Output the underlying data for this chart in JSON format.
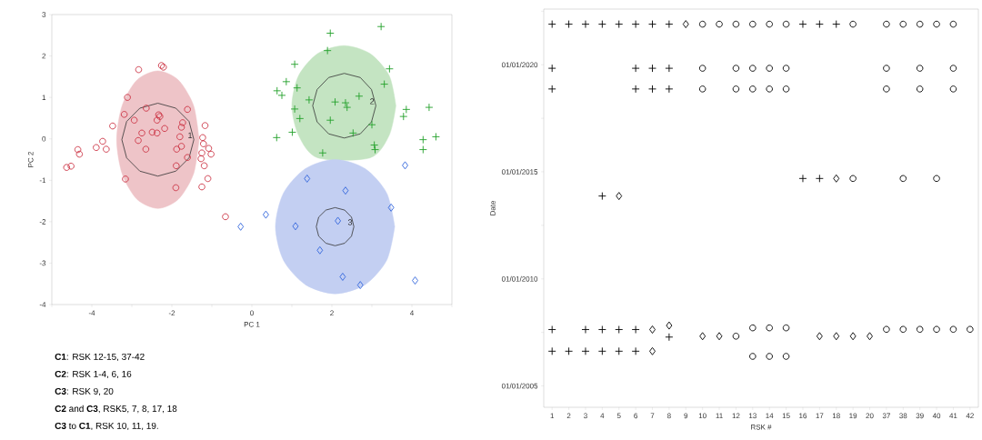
{
  "chart_data": [
    {
      "type": "scatter",
      "xlabel": "PC 1",
      "ylabel": "PC 2",
      "xlim": [
        -5,
        5
      ],
      "ylim": [
        -4,
        3
      ],
      "xticks": [
        {
          "value": -5,
          "label": null
        },
        -4,
        {
          "value": -3,
          "label": null
        },
        -2,
        {
          "value": -1,
          "label": null
        },
        0,
        {
          "value": 1,
          "label": null
        },
        2,
        {
          "value": 3,
          "label": null
        },
        4,
        {
          "value": 5,
          "label": null
        }
      ],
      "yticks": [
        -4,
        -3,
        -2,
        -1,
        0,
        1,
        2,
        3
      ],
      "series": [
        {
          "type": "area",
          "color": "#eec4c8",
          "marker": "none",
          "x": [
            -1.32,
            -1.46,
            -1.84,
            -2.35,
            -2.87,
            -3.24,
            -3.38,
            -3.24,
            -2.87,
            -2.35,
            -1.84,
            -1.46,
            -1.32
          ],
          "values": [
            -0.02,
            0.81,
            1.42,
            1.64,
            1.42,
            0.81,
            -0.02,
            -0.85,
            -1.46,
            -1.68,
            -1.46,
            -0.85,
            -0.02
          ]
        },
        {
          "type": "area",
          "color": "#c4e4c2",
          "marker": "none",
          "x": [
            3.6,
            3.43,
            2.95,
            2.3,
            1.65,
            1.17,
            1.0,
            1.17,
            1.65,
            2.3,
            2.95,
            3.43,
            3.6
          ],
          "values": [
            0.8,
            1.53,
            2.06,
            2.25,
            2.06,
            1.53,
            0.8,
            0.08,
            -0.46,
            null,
            -0.46,
            0.08,
            0.8
          ]
        },
        {
          "type": "area",
          "color": "#c3cff2",
          "marker": "none",
          "x": [
            3.57,
            3.37,
            2.83,
            2.08,
            1.34,
            0.79,
            0.59,
            0.79,
            1.34,
            2.08,
            2.83,
            3.37,
            3.57
          ],
          "values": [
            -2.12,
            -1.31,
            -0.72,
            -0.5,
            -0.72,
            -1.31,
            -2.12,
            -2.93,
            -3.52,
            -3.74,
            -3.52,
            -2.93,
            -2.12
          ]
        },
        {
          "type": "line",
          "color": "#333333",
          "marker": "none",
          "x": [
            -3.25,
            -3.13,
            -2.8,
            -2.35,
            -1.9,
            -1.57,
            -1.45
          ],
          "values": [
            -0.02,
            0.42,
            0.74,
            0.86,
            0.74,
            0.42,
            -0.02
          ]
        },
        {
          "type": "line",
          "color": "#333333",
          "marker": "none",
          "x": [
            -3.25,
            -3.13,
            -2.8,
            -2.35,
            -1.9,
            -1.57,
            -1.45
          ],
          "values": [
            -0.02,
            -0.46,
            -0.78,
            -0.9,
            -0.78,
            -0.46,
            -0.02
          ]
        },
        {
          "type": "line",
          "color": "#333333",
          "marker": "none",
          "x": [
            1.52,
            1.63,
            1.92,
            2.31,
            2.71,
            2.99,
            3.1
          ],
          "values": [
            0.8,
            1.19,
            1.48,
            1.58,
            1.48,
            1.19,
            0.8
          ]
        },
        {
          "type": "line",
          "color": "#333333",
          "marker": "none",
          "x": [
            1.52,
            1.63,
            1.92,
            2.31,
            2.71,
            2.99,
            3.1
          ],
          "values": [
            0.8,
            0.41,
            0.12,
            0.02,
            0.12,
            0.41,
            0.8
          ]
        },
        {
          "type": "line",
          "color": "#333333",
          "marker": "none",
          "x": [
            1.61,
            1.67,
            1.85,
            2.08,
            2.32,
            2.49,
            2.55
          ],
          "values": [
            -2.12,
            -1.89,
            -1.72,
            -1.66,
            -1.72,
            -1.89,
            -2.12
          ]
        },
        {
          "type": "line",
          "color": "#333333",
          "marker": "none",
          "x": [
            1.61,
            1.67,
            1.85,
            2.08,
            2.32,
            2.49,
            2.55
          ],
          "values": [
            -2.12,
            -2.35,
            -2.52,
            -2.58,
            -2.52,
            -2.35,
            -2.12
          ]
        },
        {
          "color": "#cc3344",
          "marker": "circle",
          "x": [
            -2.83,
            -2.26,
            -2.21,
            -3.11,
            -3.19,
            -2.64,
            -2.94,
            -3.48,
            -2.33,
            -2.3,
            -2.37,
            -2.18,
            -2.75,
            -2.49,
            -2.37,
            -2.84,
            -2.65,
            -1.61,
            -1.73,
            -1.76,
            -1.8,
            -1.76,
            -1.88,
            -1.61,
            -1.89,
            -1.17,
            -1.23,
            -1.21,
            -1.08,
            -1.25,
            -1.02,
            -1.27,
            -1.19,
            -1.1,
            -1.25,
            -1.9,
            -3.16,
            -3.73,
            -3.89,
            -3.64,
            -4.35,
            -4.31,
            -4.63,
            -4.52,
            -0.66
          ],
          "values": [
            1.67,
            1.77,
            1.73,
            1.0,
            0.59,
            0.74,
            0.45,
            0.31,
            0.58,
            0.54,
            0.45,
            0.25,
            0.14,
            0.16,
            0.14,
            -0.04,
            -0.25,
            0.71,
            0.39,
            0.28,
            0.05,
            -0.18,
            -0.25,
            -0.45,
            -0.65,
            0.32,
            0.03,
            -0.12,
            -0.23,
            -0.34,
            -0.37,
            -0.48,
            -0.65,
            -0.96,
            -1.16,
            -1.18,
            -0.97,
            -0.06,
            -0.21,
            -0.25,
            -0.26,
            -0.37,
            -0.69,
            -0.66,
            -1.88
          ]
        },
        {
          "color": "#22a02a",
          "marker": "cross",
          "x": [
            3.23,
            1.96,
            1.89,
            1.07,
            3.44,
            0.86,
            1.13,
            3.31,
            0.63,
            0.75,
            1.43,
            1.07,
            1.2,
            2.08,
            2.34,
            2.38,
            2.68,
            3.86,
            3.79,
            4.43,
            1.96,
            3.0,
            1.01,
            0.62,
            2.53,
            3.06,
            3.08,
            4.28,
            4.6,
            4.28,
            1.77
          ],
          "values": [
            2.71,
            2.55,
            2.13,
            1.8,
            1.69,
            1.38,
            1.23,
            1.32,
            1.16,
            1.05,
            0.94,
            0.72,
            0.49,
            0.89,
            0.87,
            0.76,
            1.03,
            0.71,
            0.54,
            0.76,
            0.45,
            0.34,
            0.16,
            0.03,
            0.14,
            -0.15,
            -0.26,
            -0.02,
            0.05,
            -0.26,
            -0.34
          ]
        },
        {
          "color": "#3366dd",
          "marker": "diamond",
          "x": [
            3.83,
            1.38,
            2.34,
            3.48,
            0.35,
            -0.28,
            1.09,
            2.15,
            1.7,
            2.27,
            2.71,
            4.08
          ],
          "values": [
            -0.64,
            -0.96,
            -1.25,
            -1.66,
            -1.83,
            -2.12,
            -2.11,
            -1.98,
            -2.69,
            -3.33,
            -3.53,
            -3.42
          ]
        }
      ],
      "annotations": [
        {
          "text": "1",
          "x": -1.45,
          "y": -0.02
        },
        {
          "text": "2",
          "x": 3.1,
          "y": 0.8
        },
        {
          "text": "3",
          "x": 2.55,
          "y": -2.12
        },
        "**C1**:  RSK 12-15, 37-42",
        "**C2**: RSK 1-4, 6, 16",
        "**C3**: RSK 9, 20",
        "**C2** and **C3**, RSK5, 7, 8, 17, 18",
        "**C3** to **C1**, RSK 10, 11, 19."
      ]
    },
    {
      "type": "scatter",
      "xlabel": "RSK #",
      "ylabel": "Date",
      "categories": [
        "1",
        "2",
        "3",
        "4",
        "5",
        "6",
        "7",
        "8",
        "9",
        "10",
        "11",
        "12",
        "13",
        "14",
        "15",
        "16",
        "17",
        "18",
        "19",
        "20",
        "37",
        "38",
        "39",
        "40",
        "41",
        "42"
      ],
      "ylim": [
        "2004-01-01",
        "2022-08-08"
      ],
      "yticks": [
        {
          "value": "2005-01-01",
          "label": "01/01/2005"
        },
        {
          "value": "2007-07-02",
          "label": null
        },
        {
          "value": "2010-01-01",
          "label": "01/01/2010"
        },
        {
          "value": "2012-07-02",
          "label": null
        },
        {
          "value": "2015-01-01",
          "label": "01/01/2015"
        },
        {
          "value": "2017-07-02",
          "label": null
        },
        {
          "value": "2020-01-01",
          "label": "01/01/2020"
        },
        {
          "value": "2022-07-02",
          "label": null
        }
      ],
      "series": [
        {
          "color": "#000000",
          "marker": "cross",
          "x": [
            "1",
            "2",
            "3",
            "4",
            "5",
            "6",
            "7",
            "8",
            "16",
            "17",
            "18",
            "1",
            "6",
            "7",
            "8",
            "1",
            "6",
            "7",
            "8",
            "16",
            "17",
            "4",
            "1",
            "3",
            "4",
            "5",
            "6",
            "8",
            "1",
            "2",
            "3",
            "4",
            "5",
            "6"
          ],
          "values": [
            18955,
            18955,
            18955,
            18955,
            18955,
            18955,
            18955,
            18955,
            18955,
            18955,
            18955,
            18202,
            18202,
            18202,
            18202,
            17849,
            17849,
            17849,
            17849,
            16322,
            16322,
            16023,
            13744,
            13744,
            13744,
            13744,
            13744,
            13616,
            13375,
            13375,
            13375,
            13375,
            13375,
            13375
          ]
        },
        {
          "color": "#000000",
          "marker": "diamond",
          "x": [
            "9",
            "18",
            "5",
            "7",
            "8",
            "10",
            "11",
            "17",
            "18",
            "19",
            "20",
            "7"
          ],
          "values": [
            18955,
            16322,
            16023,
            13744,
            13813,
            13631,
            13631,
            13631,
            13631,
            13631,
            13631,
            13375
          ]
        },
        {
          "color": "#000000",
          "marker": "circle",
          "x": [
            "10",
            "11",
            "12",
            "13",
            "14",
            "15",
            "19",
            "37",
            "38",
            "39",
            "40",
            "41",
            "10",
            "12",
            "13",
            "14",
            "15",
            "37",
            "39",
            "41",
            "10",
            "12",
            "13",
            "14",
            "15",
            "37",
            "39",
            "41",
            "19",
            "38",
            "40",
            "12",
            "13",
            "14",
            "15",
            "13",
            "14",
            "15",
            "37",
            "38",
            "39",
            "40",
            "41",
            "42"
          ],
          "values": [
            18955,
            18955,
            18955,
            18955,
            18955,
            18955,
            18955,
            18955,
            18955,
            18955,
            18955,
            18955,
            18202,
            18202,
            18202,
            18202,
            18202,
            18202,
            18202,
            18202,
            17849,
            17849,
            17849,
            17849,
            17849,
            17849,
            17849,
            17849,
            16322,
            16322,
            16322,
            13631,
            13773,
            13773,
            13773,
            13287,
            13287,
            13287,
            13748,
            13748,
            13748,
            13748,
            13748,
            13748
          ]
        }
      ]
    }
  ]
}
